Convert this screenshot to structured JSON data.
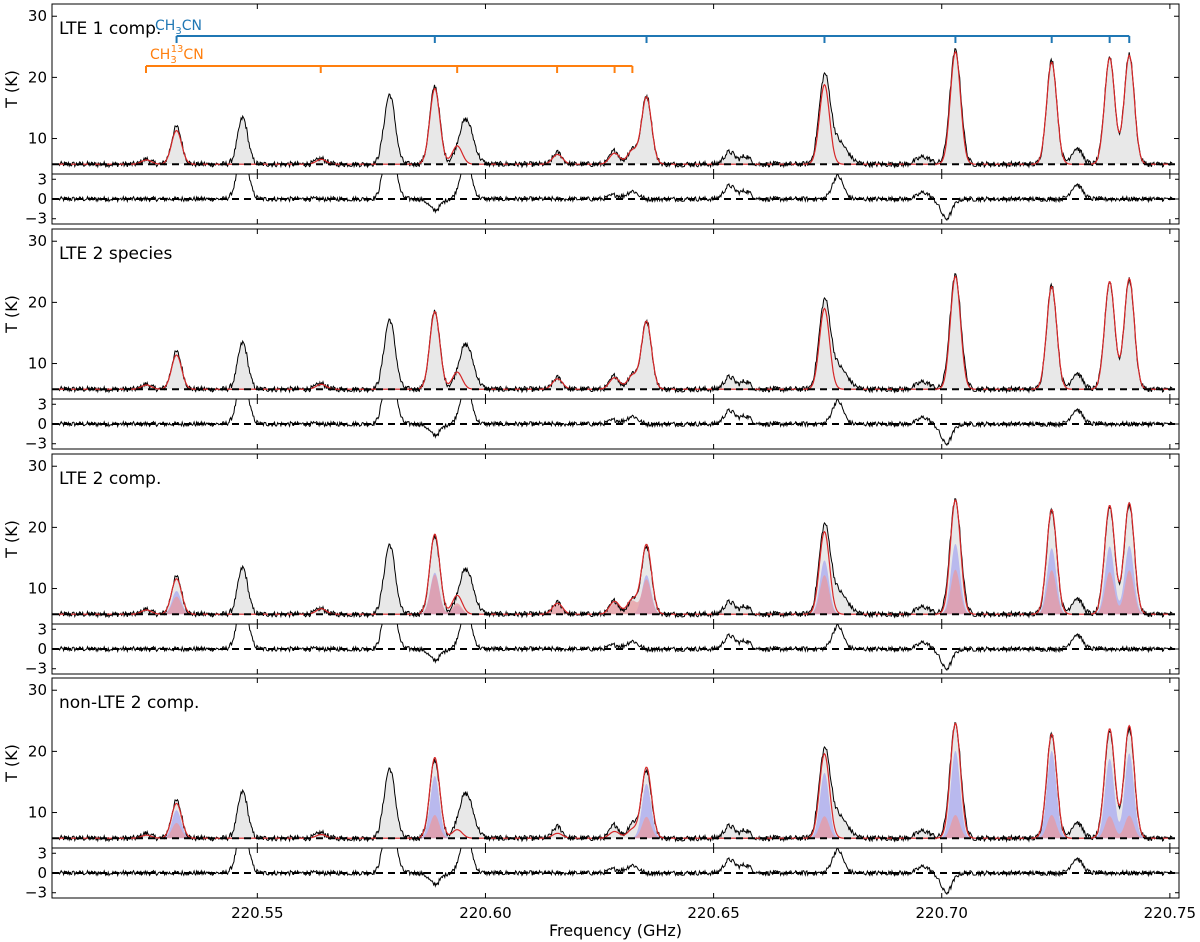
{
  "chart_data": {
    "type": "line",
    "xlabel": "Frequency (GHz)",
    "ylabel": "T (K)",
    "xlim": [
      220.505,
      220.752
    ],
    "xticks": [
      220.55,
      220.6,
      220.65,
      220.7,
      220.75
    ],
    "xtick_labels": [
      "220.55",
      "220.60",
      "220.65",
      "220.70",
      "220.75"
    ],
    "main_ylim": [
      4.2,
      32
    ],
    "main_yticks": [
      10,
      20,
      30
    ],
    "residual_ylim": [
      -3.8,
      3.8
    ],
    "residual_yticks": [
      -3,
      0,
      3
    ],
    "residual_ytick_labels": [
      "−3",
      "0",
      "3"
    ],
    "baseline_T": 5.8,
    "colors": {
      "observed": "#000000",
      "fill": "#e8e8e8",
      "model": "#d62728",
      "ch3cn": "#1f77b4",
      "ch3_13cn": "#ff7f0e",
      "comp_a": "#a9a9f0",
      "comp_b": "#e89aa0"
    },
    "panels": [
      {
        "label": "LTE 1 comp.",
        "model": "LTE1",
        "components": 0
      },
      {
        "label": "LTE 2 species",
        "model": "LTE2S",
        "components": 0
      },
      {
        "label": "LTE 2 comp.",
        "model": "LTE2C",
        "components": 2
      },
      {
        "label": "non-LTE 2 comp.",
        "model": "NLTE2C",
        "components": 2
      }
    ],
    "line_markers": [
      {
        "species": "CH3CN",
        "label_main": "CH",
        "label_sub": "3",
        "label_sup": "",
        "label_tail": "CN",
        "freqs": [
          220.5323,
          220.5889,
          220.6353,
          220.6743,
          220.703,
          220.7241,
          220.7368,
          220.7411
        ]
      },
      {
        "species": "CH3-13CN",
        "label_main": "CH",
        "label_sub": "3",
        "label_sup": "13",
        "label_tail": "CN",
        "freqs": [
          220.5256,
          220.5639,
          220.5938,
          220.6157,
          220.6283,
          220.6322
        ]
      }
    ],
    "observed_peaks": [
      {
        "f": 220.5257,
        "T": 6.6,
        "w": 0.001
      },
      {
        "f": 220.5323,
        "T": 11.9,
        "w": 0.0011
      },
      {
        "f": 220.5468,
        "T": 13.4,
        "w": 0.0011
      },
      {
        "f": 220.564,
        "T": 6.7,
        "w": 0.0011
      },
      {
        "f": 220.579,
        "T": 17.2,
        "w": 0.0012
      },
      {
        "f": 220.5889,
        "T": 18.6,
        "w": 0.0011
      },
      {
        "f": 220.5957,
        "T": 13.1,
        "w": 0.0016
      },
      {
        "f": 220.6158,
        "T": 7.7,
        "w": 0.001
      },
      {
        "f": 220.6283,
        "T": 8.0,
        "w": 0.001
      },
      {
        "f": 220.6322,
        "T": 8.3,
        "w": 0.001
      },
      {
        "f": 220.6353,
        "T": 17.0,
        "w": 0.0011
      },
      {
        "f": 220.6535,
        "T": 7.8,
        "w": 0.0012
      },
      {
        "f": 220.657,
        "T": 7.1,
        "w": 0.001
      },
      {
        "f": 220.6743,
        "T": 19.3,
        "w": 0.0012
      },
      {
        "f": 220.6772,
        "T": 9.5,
        "w": 0.002
      },
      {
        "f": 220.696,
        "T": 7.0,
        "w": 0.0015
      },
      {
        "f": 220.703,
        "T": 24.4,
        "w": 0.0012
      },
      {
        "f": 220.7241,
        "T": 22.8,
        "w": 0.0011
      },
      {
        "f": 220.7296,
        "T": 8.4,
        "w": 0.0012
      },
      {
        "f": 220.7368,
        "T": 23.4,
        "w": 0.0011
      },
      {
        "f": 220.7411,
        "T": 23.8,
        "w": 0.0011
      }
    ],
    "model_peaks": {
      "LTE1": [
        {
          "f": 220.5257,
          "T": 6.5
        },
        {
          "f": 220.5323,
          "T": 11.3
        },
        {
          "f": 220.564,
          "T": 6.6
        },
        {
          "f": 220.5889,
          "T": 18.2
        },
        {
          "f": 220.5938,
          "T": 8.8
        },
        {
          "f": 220.6158,
          "T": 7.4
        },
        {
          "f": 220.6283,
          "T": 7.6
        },
        {
          "f": 220.6322,
          "T": 8.0
        },
        {
          "f": 220.6353,
          "T": 16.8
        },
        {
          "f": 220.6743,
          "T": 18.8
        },
        {
          "f": 220.703,
          "T": 24.2
        },
        {
          "f": 220.7241,
          "T": 22.5
        },
        {
          "f": 220.7368,
          "T": 23.2
        },
        {
          "f": 220.7411,
          "T": 23.6
        }
      ],
      "LTE2S": [
        {
          "f": 220.5257,
          "T": 6.5
        },
        {
          "f": 220.5323,
          "T": 11.4
        },
        {
          "f": 220.564,
          "T": 6.6
        },
        {
          "f": 220.5889,
          "T": 18.5
        },
        {
          "f": 220.5938,
          "T": 8.6
        },
        {
          "f": 220.6158,
          "T": 7.5
        },
        {
          "f": 220.6283,
          "T": 7.7
        },
        {
          "f": 220.6322,
          "T": 8.0
        },
        {
          "f": 220.6353,
          "T": 16.9
        },
        {
          "f": 220.6743,
          "T": 19.0
        },
        {
          "f": 220.703,
          "T": 24.3
        },
        {
          "f": 220.7241,
          "T": 22.6
        },
        {
          "f": 220.7368,
          "T": 23.4
        },
        {
          "f": 220.7411,
          "T": 23.9
        }
      ],
      "LTE2C": [
        {
          "f": 220.5257,
          "T": 6.5
        },
        {
          "f": 220.5323,
          "T": 11.6
        },
        {
          "f": 220.564,
          "T": 6.7
        },
        {
          "f": 220.5889,
          "T": 18.9
        },
        {
          "f": 220.5938,
          "T": 8.9
        },
        {
          "f": 220.6158,
          "T": 7.6
        },
        {
          "f": 220.6283,
          "T": 7.9
        },
        {
          "f": 220.6322,
          "T": 8.2
        },
        {
          "f": 220.6353,
          "T": 17.2
        },
        {
          "f": 220.6743,
          "T": 19.3
        },
        {
          "f": 220.703,
          "T": 24.5
        },
        {
          "f": 220.7241,
          "T": 22.9
        },
        {
          "f": 220.7368,
          "T": 23.6
        },
        {
          "f": 220.7411,
          "T": 24.0
        }
      ],
      "NLTE2C": [
        {
          "f": 220.5257,
          "T": 6.3
        },
        {
          "f": 220.5323,
          "T": 11.5
        },
        {
          "f": 220.564,
          "T": 6.4
        },
        {
          "f": 220.5889,
          "T": 19.0
        },
        {
          "f": 220.5938,
          "T": 7.2
        },
        {
          "f": 220.6158,
          "T": 6.6
        },
        {
          "f": 220.6283,
          "T": 6.9
        },
        {
          "f": 220.6322,
          "T": 7.2
        },
        {
          "f": 220.6353,
          "T": 17.4
        },
        {
          "f": 220.6743,
          "T": 19.6
        },
        {
          "f": 220.703,
          "T": 24.6
        },
        {
          "f": 220.7241,
          "T": 22.8
        },
        {
          "f": 220.7368,
          "T": 23.7
        },
        {
          "f": 220.7411,
          "T": 24.2
        }
      ]
    },
    "component_peaks": {
      "LTE2C": {
        "a": [
          {
            "f": 220.5323,
            "T": 9.6
          },
          {
            "f": 220.5889,
            "T": 12.6
          },
          {
            "f": 220.5938,
            "T": 7.2
          },
          {
            "f": 220.6353,
            "T": 12.2
          },
          {
            "f": 220.6743,
            "T": 14.6
          },
          {
            "f": 220.703,
            "T": 17.3
          },
          {
            "f": 220.7241,
            "T": 16.6
          },
          {
            "f": 220.7368,
            "T": 16.9
          },
          {
            "f": 220.7411,
            "T": 17.0
          }
        ],
        "b": [
          {
            "f": 220.5323,
            "T": 8.7
          },
          {
            "f": 220.5889,
            "T": 12.3
          },
          {
            "f": 220.5938,
            "T": 7.6
          },
          {
            "f": 220.6158,
            "T": 7.4
          },
          {
            "f": 220.6283,
            "T": 7.6
          },
          {
            "f": 220.6322,
            "T": 8.0
          },
          {
            "f": 220.6353,
            "T": 11.5
          },
          {
            "f": 220.6743,
            "T": 12.2
          },
          {
            "f": 220.703,
            "T": 13.1
          },
          {
            "f": 220.7241,
            "T": 13.0
          },
          {
            "f": 220.7368,
            "T": 12.7
          },
          {
            "f": 220.7411,
            "T": 13.0
          }
        ]
      },
      "NLTE2C": {
        "a": [
          {
            "f": 220.5323,
            "T": 10.4
          },
          {
            "f": 220.5889,
            "T": 16.0
          },
          {
            "f": 220.6353,
            "T": 14.7
          },
          {
            "f": 220.6743,
            "T": 16.5
          },
          {
            "f": 220.703,
            "T": 20.1
          },
          {
            "f": 220.7241,
            "T": 20.1
          },
          {
            "f": 220.7368,
            "T": 18.8
          },
          {
            "f": 220.7411,
            "T": 19.7
          }
        ],
        "b": [
          {
            "f": 220.5323,
            "T": 8.3
          },
          {
            "f": 220.5889,
            "T": 9.6
          },
          {
            "f": 220.6353,
            "T": 9.3
          },
          {
            "f": 220.6743,
            "T": 9.4
          },
          {
            "f": 220.703,
            "T": 9.6
          },
          {
            "f": 220.7241,
            "T": 9.6
          },
          {
            "f": 220.7368,
            "T": 9.4
          },
          {
            "f": 220.7411,
            "T": 9.5
          }
        ]
      }
    },
    "residual_features": [
      {
        "f": 220.5468,
        "v": 7.0
      },
      {
        "f": 220.579,
        "v": 10.0
      },
      {
        "f": 220.5957,
        "v": 6.0
      },
      {
        "f": 220.5889,
        "v": -1.7
      },
      {
        "f": 220.6535,
        "v": 2.0
      },
      {
        "f": 220.657,
        "v": 1.2
      },
      {
        "f": 220.6772,
        "v": 3.5
      },
      {
        "f": 220.696,
        "v": 1.0
      },
      {
        "f": 220.701,
        "v": -3.0
      },
      {
        "f": 220.7296,
        "v": 2.2
      },
      {
        "f": 220.6283,
        "v": 0.6
      },
      {
        "f": 220.6322,
        "v": 1.2
      }
    ]
  }
}
